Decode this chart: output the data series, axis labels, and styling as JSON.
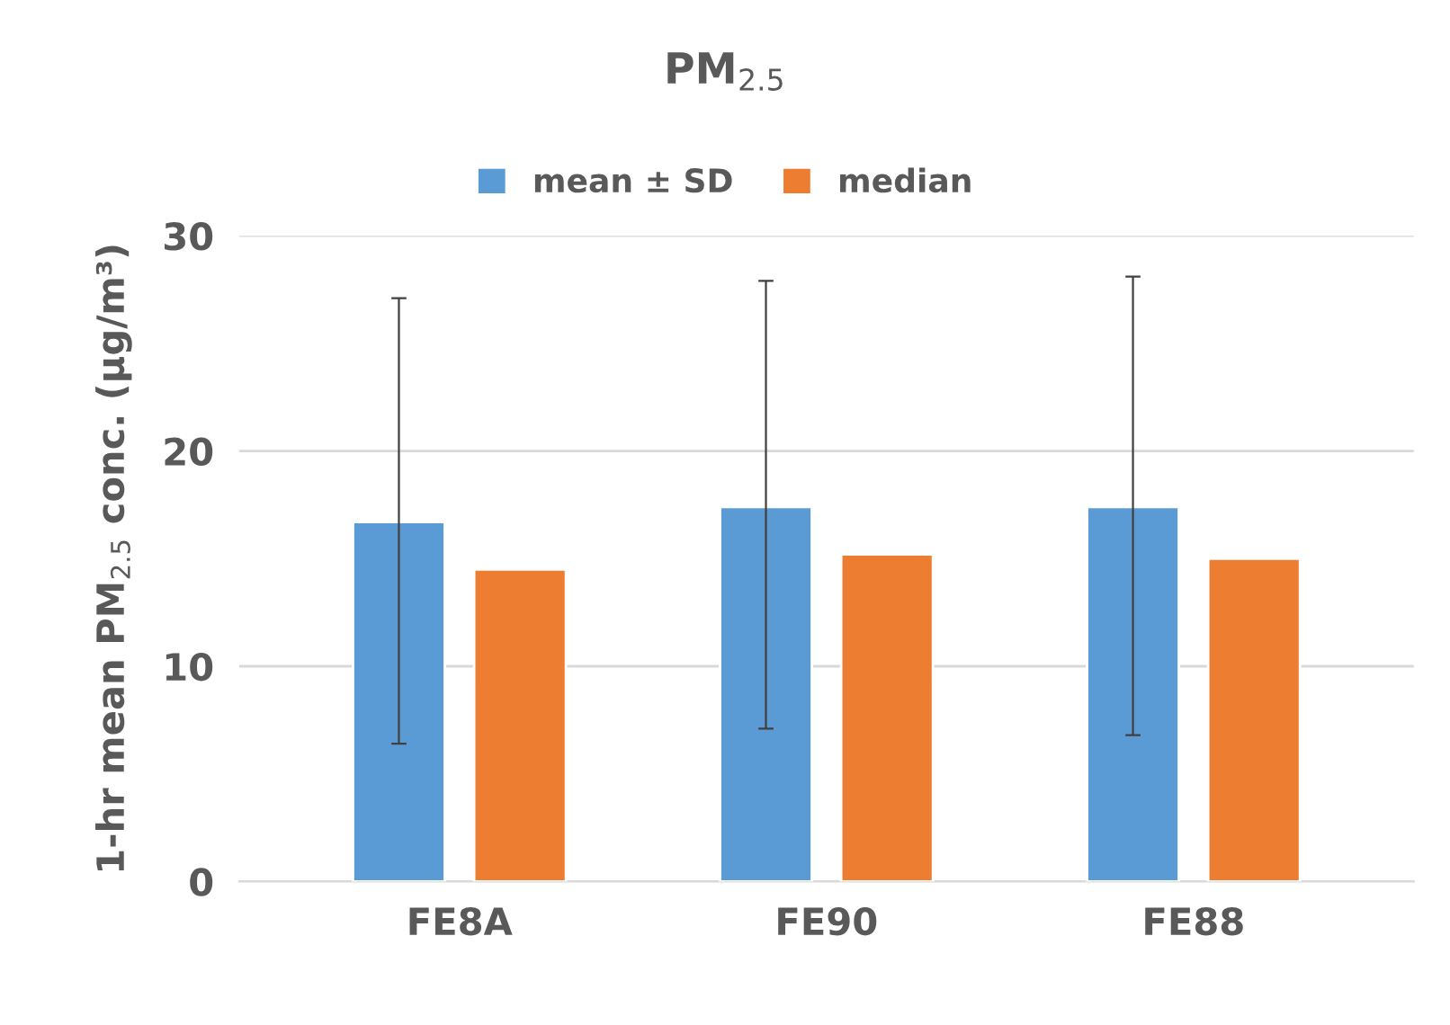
{
  "chart_data": {
    "type": "bar",
    "title": "PM$_{2.5}$",
    "ylabel": "1-hr mean PM$_{2.5}$ conc. (µg/m³)",
    "categories": [
      "FE8A",
      "FE90",
      "FE88"
    ],
    "series": [
      {
        "name": "mean ± SD",
        "color": "#5b9bd5",
        "values": [
          16.7,
          17.4,
          17.4
        ],
        "errors": [
          [
            6.4,
            27.1
          ],
          [
            7.1,
            27.9
          ],
          [
            6.8,
            28.1
          ]
        ]
      },
      {
        "name": "median",
        "color": "#ed7d31",
        "values": [
          14.5,
          15.2,
          15.0
        ]
      }
    ],
    "ylim": [
      0,
      30
    ],
    "yticks": [
      0,
      10,
      20,
      30
    ],
    "grid": "y",
    "legend": "top"
  }
}
